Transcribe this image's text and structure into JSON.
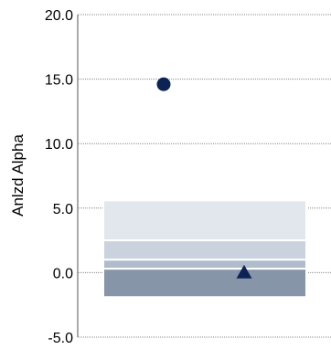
{
  "chart_data": {
    "type": "scatter",
    "ylabel": "Anlzd Alpha",
    "ylim": [
      -5.0,
      20.0
    ],
    "yticks": [
      "20.0",
      "15.0",
      "10.0",
      "5.0",
      "0.0",
      "-5.0"
    ],
    "ytick_values": [
      20,
      15,
      10,
      5,
      0,
      -5
    ],
    "grid": true,
    "range_bands": [
      {
        "from": 2.5,
        "to": 5.6,
        "color": "#e2e7ee"
      },
      {
        "from": 1.0,
        "to": 2.5,
        "color": "#c9d2dd"
      },
      {
        "from": 0.3,
        "to": 1.0,
        "color": "#b0bccb"
      },
      {
        "from": -1.9,
        "to": 0.3,
        "color": "#8795a8"
      }
    ],
    "points": [
      {
        "marker": "circle",
        "y": 14.6,
        "color": "#0d2356"
      },
      {
        "marker": "triangle",
        "y": 0.0,
        "color": "#0d2356"
      }
    ]
  }
}
